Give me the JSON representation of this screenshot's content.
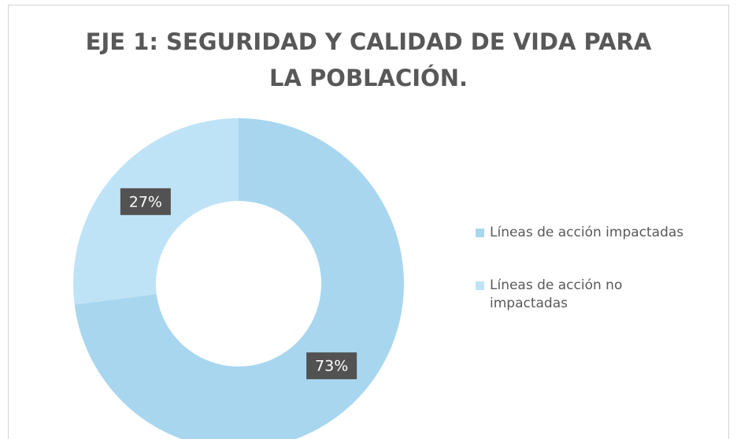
{
  "chart_data": {
    "type": "donut",
    "title": "EJE 1: SEGURIDAD Y CALIDAD DE VIDA PARA LA POBLACIÓN.",
    "categories": [
      "Líneas de acción impactadas",
      "Líneas de acción no impactadas"
    ],
    "values": [
      73,
      27
    ],
    "value_labels": [
      "73%",
      "27%"
    ],
    "colors": [
      "#a8d6ef",
      "#bfe3f6"
    ],
    "legend": "right"
  }
}
